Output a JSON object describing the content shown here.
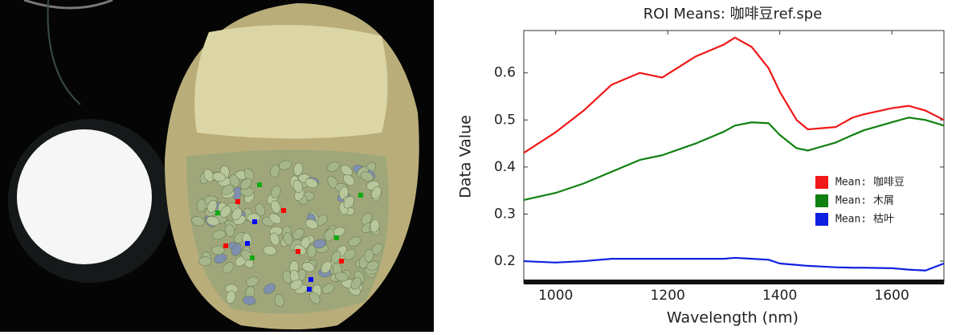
{
  "chart_data": {
    "type": "line",
    "title": "ROI Means: 咖啡豆ref.spe",
    "x_label": "Wavelength (nm)",
    "y_label": "Data Value",
    "x": [
      943,
      1000,
      1050,
      1100,
      1150,
      1190,
      1250,
      1300,
      1320,
      1350,
      1380,
      1400,
      1430,
      1450,
      1500,
      1530,
      1550,
      1600,
      1630,
      1660,
      1693
    ],
    "series": [
      {
        "name": "Mean: 咖啡豆",
        "color": "#f01818",
        "values": [
          0.43,
          0.474,
          0.52,
          0.575,
          0.6,
          0.59,
          0.635,
          0.66,
          0.675,
          0.655,
          0.61,
          0.56,
          0.5,
          0.48,
          0.485,
          0.505,
          0.512,
          0.525,
          0.53,
          0.52,
          0.5
        ]
      },
      {
        "name": "Mean: 木屑",
        "color": "#108010",
        "values": [
          0.33,
          0.345,
          0.365,
          0.39,
          0.415,
          0.425,
          0.45,
          0.475,
          0.488,
          0.495,
          0.493,
          0.468,
          0.44,
          0.435,
          0.452,
          0.468,
          0.478,
          0.495,
          0.505,
          0.5,
          0.488
        ]
      },
      {
        "name": "Mean: 枯叶",
        "color": "#1020e0",
        "values": [
          0.2,
          0.197,
          0.2,
          0.205,
          0.205,
          0.205,
          0.205,
          0.205,
          0.207,
          0.205,
          0.203,
          0.195,
          0.192,
          0.19,
          0.187,
          0.186,
          0.186,
          0.185,
          0.182,
          0.18,
          0.195
        ]
      }
    ],
    "xlim": [
      943,
      1693
    ],
    "ylim": [
      0.154,
      0.69
    ],
    "xticks": [
      1000,
      1200,
      1400,
      1600
    ],
    "yticks": [
      0.2,
      0.3,
      0.4,
      0.5,
      0.6
    ],
    "grid": false,
    "legend": "right"
  }
}
